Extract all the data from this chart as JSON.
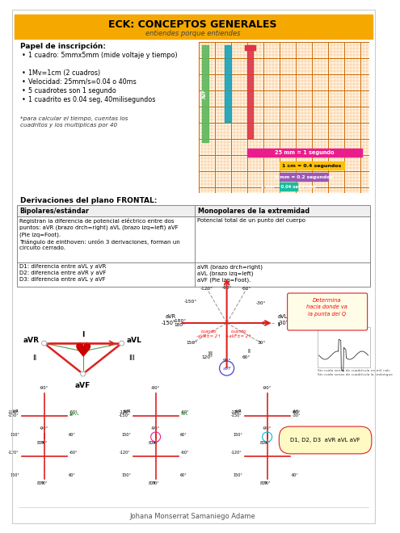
{
  "title": "ECK: CONCEPTOS GENERALES",
  "subtitle": "entiendes porque entiendes",
  "title_bg": "#F5A800",
  "title_color": "#000000",
  "page_bg": "#FFFFFF",
  "bullet_title": "Papel de inscripción:",
  "bullets": [
    "1 cuadro: 5mmx5mm (mide\n   voltaje y tiempo)",
    "1Mv=1cm (2 cuadros)",
    "Velocidad: 25mm/s=0.04 o\n   40ms",
    "5 cuadrotes son 1 segundo",
    "1 cuadrito es 0.04 seg,\n   40milisegundos"
  ],
  "italic_note": "*para calcular el tiempo, cuentas los\ncuadritos y los multiplicas por 40",
  "frontal_title": "Derivaciones del plano FRONTAL:",
  "table_headers": [
    "Bipolares/estándar",
    "Monopolares de la extremidad"
  ],
  "table_row1_left": "Registran la diferencia de potencial eléctrico entre dos\npuntos: aVR (brazo drch=right) aVL (brazo izq=left) aVF\n(Pie izq=Foot).\nTriángulo de einthoven: unión 3 derivaciones, forman un\ncircuito cerrado.",
  "table_row1_right": "Potencial total de un punto del cuerpo",
  "table_row2_left": "D1: diferencia entre aVL y aVR\nD2: diferencia entre aVR y aVF\nD3: diferencia entre aVL y aVF",
  "table_row2_right": "aVR (brazo drch=right)\naVL (brazo izq=left)\naVF (Pie izq=Foot).",
  "footer": "Johana Monserrat Samaniego Adame",
  "ecg_grid_minor": "#F4A460",
  "ecg_grid_major": "#CC6600",
  "bar_green": "#5CB85C",
  "bar_cyan": "#17A2B8",
  "bar_red": "#DC3545",
  "bar_pink": "#E91E8C",
  "bar_yellow": "#FFC107",
  "bar_purple": "#9B59B6",
  "bar_teal": "#1ABC9C",
  "label_pink": "25 mm = 1 segundo",
  "label_yellow": "1 cm = 0.4 segundos",
  "label_purple": "5 mm = 0.2 segundos",
  "label_teal": "1 mm = 0.04 segundos"
}
